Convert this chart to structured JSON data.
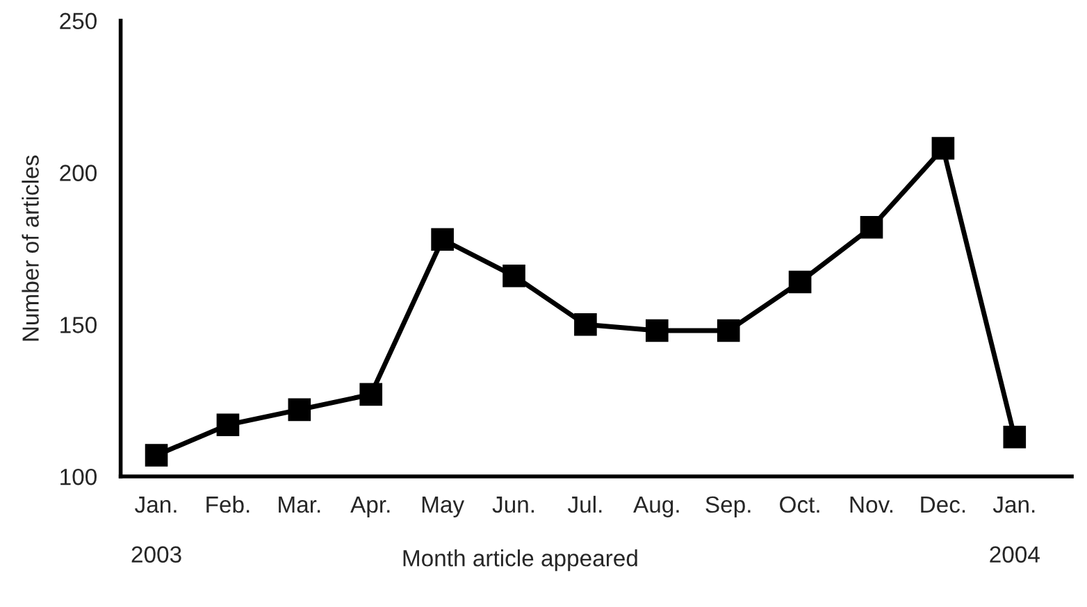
{
  "chart_data": {
    "type": "line",
    "xlabel": "Month article appeared",
    "ylabel": "Number of articles",
    "categories": [
      "Jan.\n\n2003",
      "Feb.",
      "Mar.",
      "Apr.",
      "May",
      "Jun.",
      "Jul.",
      "Aug.",
      "Sep.",
      "Oct.",
      "Nov.",
      "Dec.",
      "Jan.\n\n2004"
    ],
    "series": [
      {
        "color": "#000000",
        "values": [
          107,
          117,
          122,
          127,
          178,
          166,
          150,
          148,
          148,
          164,
          182,
          208,
          113
        ]
      }
    ],
    "ylim": [
      100,
      250
    ],
    "yticks": [
      100,
      150,
      200,
      250
    ],
    "grid": false,
    "marker": "square",
    "line_style": "solid"
  }
}
